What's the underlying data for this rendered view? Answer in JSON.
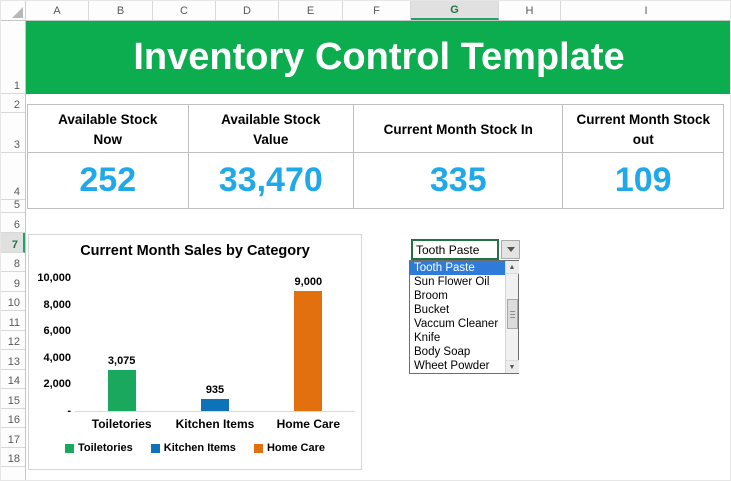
{
  "spreadsheet": {
    "columns": [
      "A",
      "B",
      "C",
      "D",
      "E",
      "F",
      "G",
      "H",
      "I"
    ],
    "rows": [
      "1",
      "2",
      "3",
      "4",
      "5",
      "6",
      "7",
      "8",
      "9",
      "10",
      "11",
      "12",
      "13",
      "14",
      "15",
      "16",
      "17",
      "18"
    ],
    "selected_column": "G",
    "selected_row": "7"
  },
  "banner": {
    "title": "Inventory Control Template",
    "bg_color": "#0cad4f"
  },
  "kpis": {
    "value_color": "#1fa9e8",
    "cards": [
      {
        "label": "Available Stock Now",
        "value": "252"
      },
      {
        "label": "Available Stock Value",
        "value": "33,470"
      },
      {
        "label": "Current Month Stock In",
        "value": "335"
      },
      {
        "label": "Current Month Stock out",
        "value": "109"
      }
    ]
  },
  "chart_data": {
    "type": "bar",
    "title": "Current Month Sales by Category",
    "categories": [
      "Toiletories",
      "Kitchen Items",
      "Home Care"
    ],
    "series": [
      {
        "name": "Toiletories",
        "value": 3075,
        "label": "3,075",
        "color": "#19a85d"
      },
      {
        "name": "Kitchen Items",
        "value": 935,
        "label": "935",
        "color": "#0e72b8"
      },
      {
        "name": "Home Care",
        "value": 9000,
        "label": "9,000",
        "color": "#e2700e"
      }
    ],
    "yticks": [
      "10,000",
      "8,000",
      "6,000",
      "4,000",
      "2,000",
      "-"
    ],
    "ylim": [
      0,
      10000
    ],
    "grid": false,
    "legend": [
      "Toiletories",
      "Kitchen Items",
      "Home Care"
    ],
    "legend_position": "bottom"
  },
  "dropdown": {
    "selected": "Tooth Paste",
    "highlighted_index": 0,
    "options": [
      "Tooth Paste",
      "Sun Flower Oil",
      "Broom",
      "Bucket",
      "Vaccum Cleaner",
      "Knife",
      "Body Soap",
      "Wheet Powder"
    ]
  }
}
